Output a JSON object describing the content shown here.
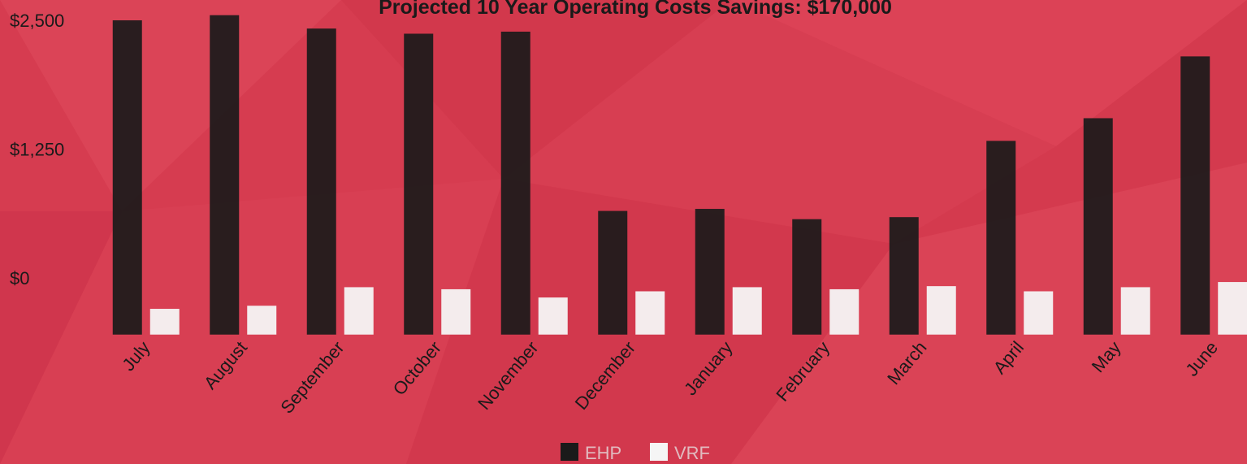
{
  "chart_data": {
    "type": "bar",
    "title": "Projected 10 Year Operating Costs Savings: $170,000",
    "categories": [
      "July",
      "August",
      "September",
      "October",
      "November",
      "December",
      "January",
      "February",
      "March",
      "April",
      "May",
      "June"
    ],
    "series": [
      {
        "name": "EHP",
        "color": "#1a1a1a",
        "values": [
          2500,
          2550,
          2420,
          2370,
          2390,
          650,
          670,
          570,
          590,
          1330,
          1550,
          2150
        ]
      },
      {
        "name": "VRF",
        "color": "#f5f5f5",
        "values": [
          -300,
          -270,
          -90,
          -110,
          -190,
          -130,
          -90,
          -110,
          -80,
          -130,
          -90,
          -40
        ]
      }
    ],
    "yticks": [
      "$2,500",
      "$1,250",
      "$0"
    ],
    "ytick_values": [
      2500,
      1250,
      0
    ],
    "ylim": [
      -550,
      2500
    ],
    "grid": false,
    "legend_position": "bottom-center"
  },
  "colors": {
    "background": "#d63c50",
    "text": "#1a1a1a"
  }
}
